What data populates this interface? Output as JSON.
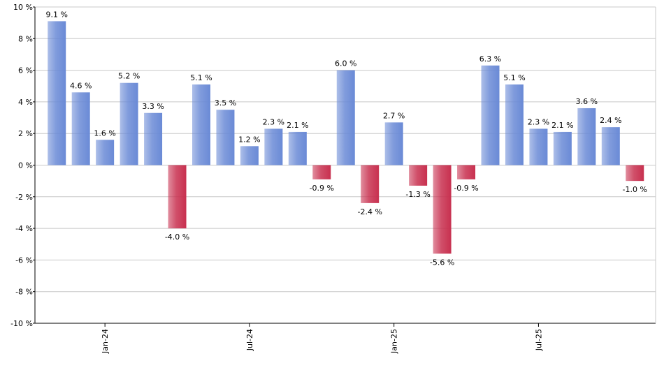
{
  "chart_data": {
    "type": "bar",
    "categories": [
      null,
      null,
      "Jan-24",
      null,
      null,
      null,
      null,
      null,
      "Jul-24",
      null,
      null,
      null,
      null,
      null,
      "Jan-25",
      null,
      null,
      null,
      null,
      null,
      "Jul-25",
      null,
      null,
      null,
      null
    ],
    "values": [
      9.1,
      4.6,
      1.6,
      5.2,
      3.3,
      -4.0,
      5.1,
      3.5,
      1.2,
      2.3,
      2.1,
      -0.9,
      6.0,
      -2.4,
      2.7,
      -1.3,
      -5.6,
      -0.9,
      6.3,
      5.1,
      2.3,
      2.1,
      3.6,
      2.4,
      -1.0
    ],
    "value_labels": [
      "9.1 %",
      "4.6 %",
      "1.6 %",
      "5.2 %",
      "3.3 %",
      "-4.0 %",
      "5.1 %",
      "3.5 %",
      "1.2 %",
      "2.3 %",
      "2.1 %",
      "-0.9 %",
      "6.0 %",
      "-2.4 %",
      "2.7 %",
      "-1.3 %",
      "-5.6 %",
      "-0.9 %",
      "6.3 %",
      "5.1 %",
      "2.3 %",
      "2.1 %",
      "3.6 %",
      "2.4 %",
      "-1.0 %"
    ],
    "positive_color": "#6a8ad6",
    "negative_color": "#c8304f",
    "ylim": [
      -10,
      10
    ],
    "yticks": [
      {
        "value": -10,
        "label": "-10 %"
      },
      {
        "value": -8,
        "label": "-8 %"
      },
      {
        "value": -6,
        "label": "-6 %"
      },
      {
        "value": -4,
        "label": "-4 %"
      },
      {
        "value": -2,
        "label": "-2 %"
      },
      {
        "value": 0,
        "label": "0 %"
      },
      {
        "value": 2,
        "label": "2 %"
      },
      {
        "value": 4,
        "label": "4 %"
      },
      {
        "value": 6,
        "label": "6 %"
      },
      {
        "value": 8,
        "label": "8 %"
      },
      {
        "value": 10,
        "label": "10 %"
      }
    ],
    "grid": true
  }
}
